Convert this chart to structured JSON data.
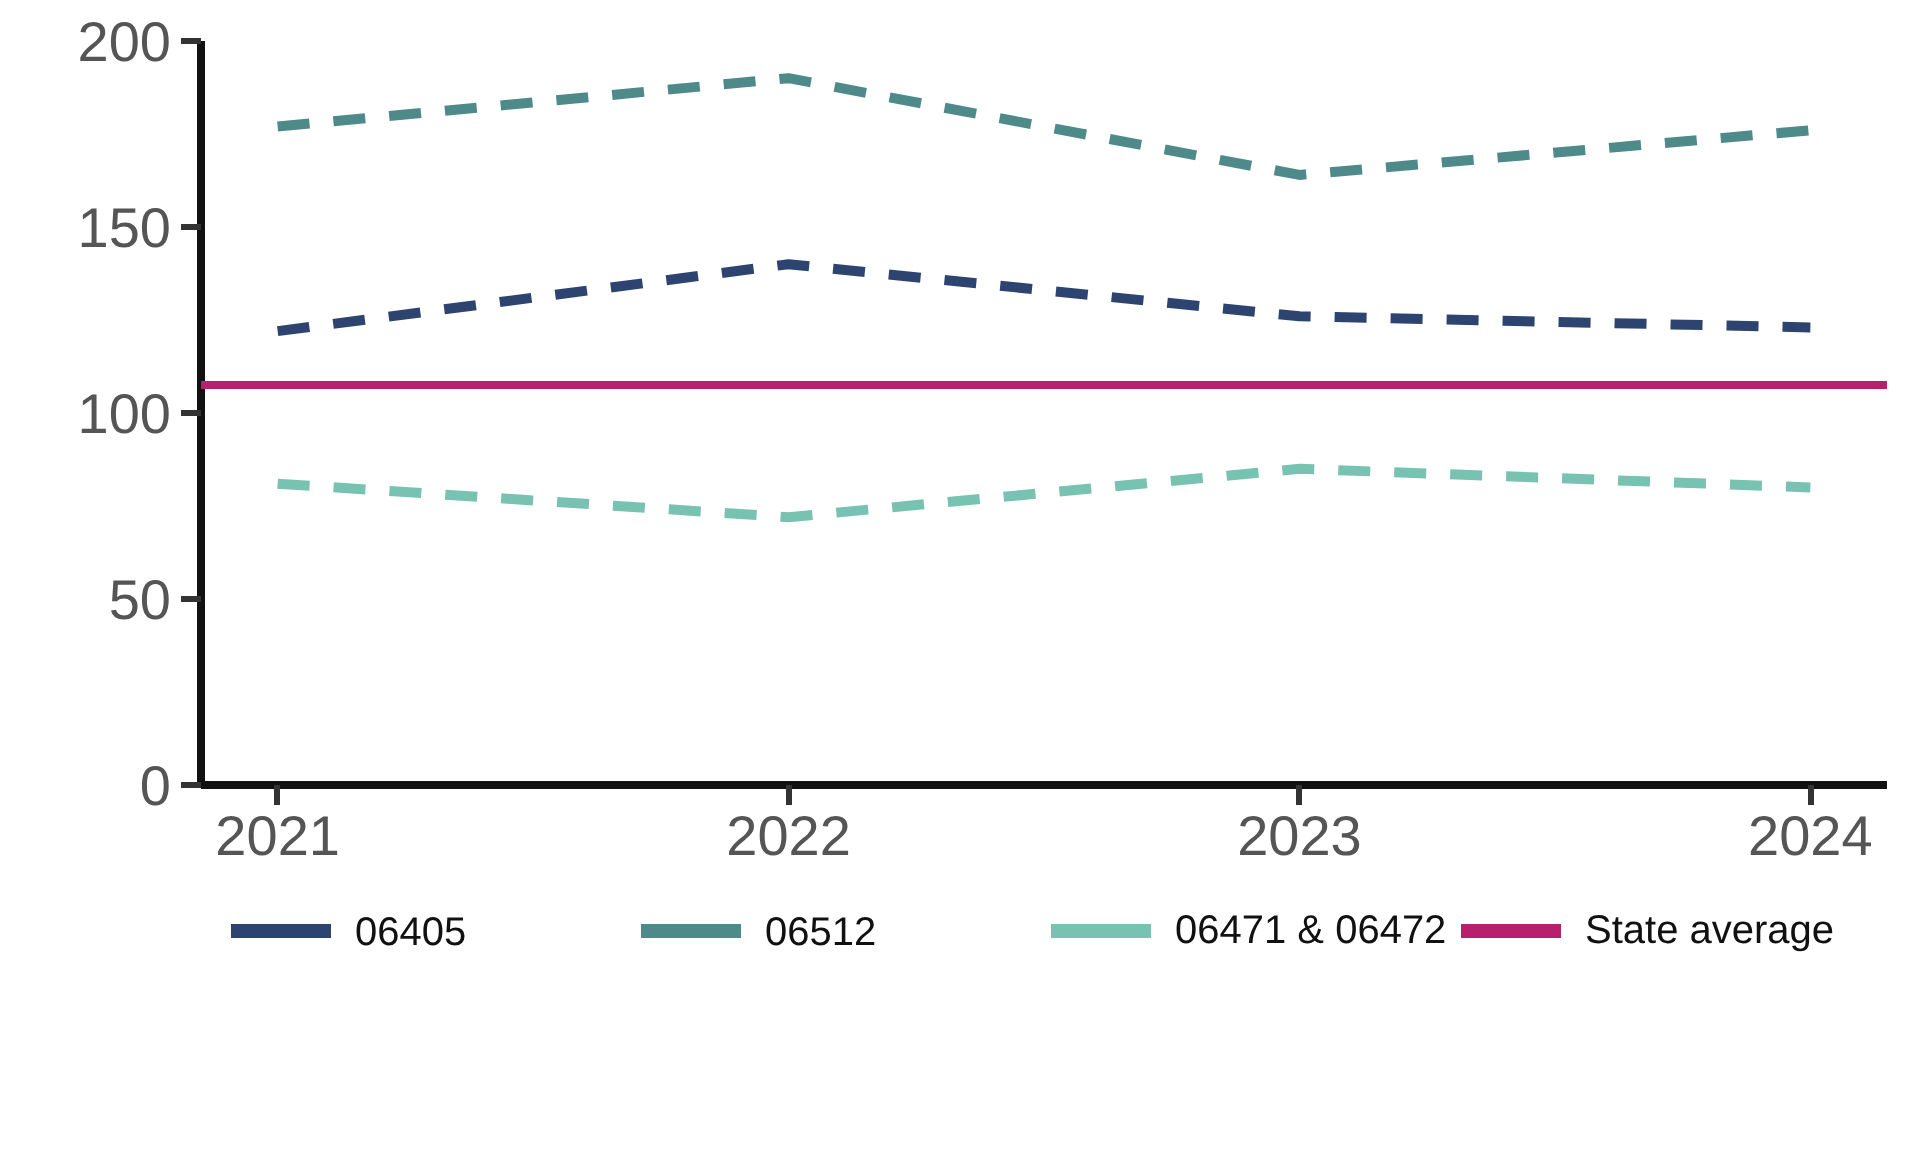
{
  "chart_data": {
    "type": "line",
    "x": [
      2021,
      2022,
      2023,
      2024
    ],
    "series": [
      {
        "name": "06405",
        "color": "#2e4470",
        "values": [
          122,
          140,
          126,
          123
        ]
      },
      {
        "name": "06512",
        "color": "#4f8a8b",
        "values": [
          177,
          190,
          164,
          176
        ]
      },
      {
        "name": "06471 & 06472",
        "color": "#78c2b2",
        "values": [
          81,
          72,
          85,
          80
        ]
      }
    ],
    "ref_lines": [
      {
        "axis": "y",
        "value": 107.5,
        "label": "State average",
        "color": "#b5206f",
        "line_style": "solid"
      }
    ],
    "xlim": [
      2020.85,
      2024.15
    ],
    "xticks": [
      2021,
      2022,
      2023,
      2024
    ],
    "ylim": [
      0,
      200
    ],
    "yticks": [
      0,
      50,
      100,
      150,
      200
    ],
    "grid": false,
    "legend": "bottom",
    "line_style": "dashed",
    "marker": "none"
  }
}
